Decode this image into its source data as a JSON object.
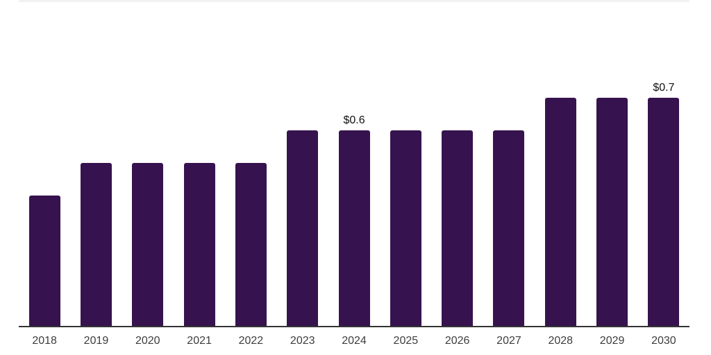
{
  "chart": {
    "background_color": "#ffffff",
    "bar_color": "#36134e",
    "axis_line_color": "#333333",
    "top_border_color": "#f2f2f2",
    "x_label_color": "#3d3d3d",
    "data_label_color": "#111111"
  },
  "chart_data": {
    "type": "bar",
    "title": "",
    "xlabel": "",
    "ylabel": "",
    "categories": [
      "2018",
      "2019",
      "2020",
      "2021",
      "2022",
      "2023",
      "2024",
      "2025",
      "2026",
      "2027",
      "2028",
      "2029",
      "2030"
    ],
    "values": [
      0.4,
      0.5,
      0.5,
      0.5,
      0.5,
      0.6,
      0.6,
      0.6,
      0.6,
      0.6,
      0.7,
      0.7,
      0.7
    ],
    "data_labels": [
      null,
      null,
      null,
      null,
      null,
      null,
      "$0.6",
      null,
      null,
      null,
      null,
      null,
      "$0.7"
    ],
    "ylim": [
      0,
      1
    ],
    "grid": false,
    "legend": false,
    "y_axis_visible": false
  }
}
